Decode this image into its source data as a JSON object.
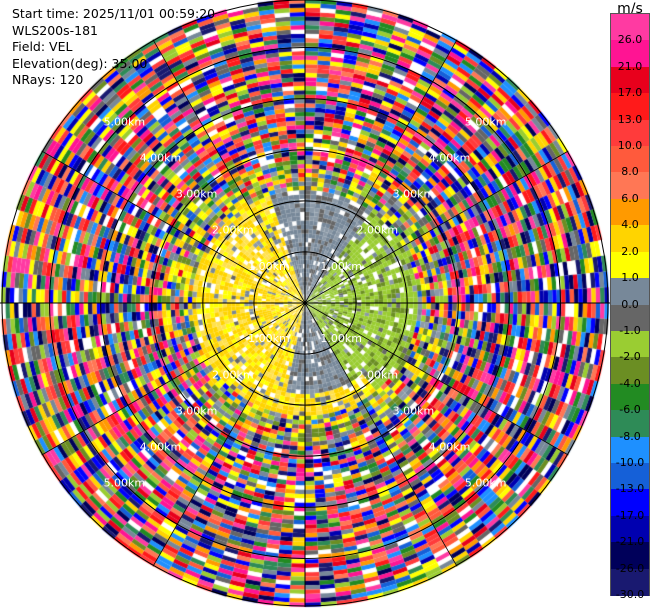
{
  "header": {
    "start_time": "Start time: 2025/11/01 00:59:20",
    "instrument": "WLS200s-181",
    "field": "Field: VEL",
    "elevation": "Elevation(deg): 35.00",
    "nrays": "NRays: 120"
  },
  "colorbar": {
    "unit": "m/s",
    "labels": [
      "26.0",
      "21.0",
      "17.0",
      "13.0",
      "10.0",
      "8.0",
      "6.0",
      "4.0",
      "2.0",
      "1.0",
      "0.0",
      "-1.0",
      "-2.0",
      "-4.0",
      "-6.0",
      "-8.0",
      "-10.0",
      "-13.0",
      "-17.0",
      "-21.0",
      "-26.0",
      "-30.0"
    ],
    "colors": [
      "#ff3aa2",
      "#ff1493",
      "#e8001c",
      "#ff1a1a",
      "#ff3b3b",
      "#ff5a3c",
      "#ff7755",
      "#ff9a00",
      "#ffd400",
      "#ffff00",
      "#778899",
      "#666666",
      "#9acd32",
      "#6b8e23",
      "#228b22",
      "#2e8b57",
      "#1e90ff",
      "#1560d8",
      "#0000ff",
      "#0000b0",
      "#00005a",
      "#191970"
    ]
  },
  "chart_data": {
    "type": "heatmap",
    "projection": "polar-ppi",
    "field": "VEL",
    "unit": "m/s",
    "nrays": 120,
    "range_rings": [
      {
        "label": "1.00km",
        "value_km": 1
      },
      {
        "label": "2.00km",
        "value_km": 2
      },
      {
        "label": "3.00km",
        "value_km": 3
      },
      {
        "label": "4.00km",
        "value_km": 4
      },
      {
        "label": "5.00km",
        "value_km": 5
      }
    ],
    "ring_labels": [
      "1.00km",
      "2.00km",
      "3.00km",
      "4.00km",
      "5.00km"
    ],
    "max_range_km": 5.0,
    "spokes_deg": [
      0,
      30,
      60,
      90,
      120,
      150,
      180,
      210,
      240,
      270,
      300,
      330
    ],
    "data_description": "Near-field (<~2 km) shows coherent radial velocity: positive ~2-4 m/s (yellow) to the west/north-west and south, ~0 m/s (grey) to the north and south-east, negative ~-1 to -2 m/s (green) to the east; beyond ~2.5 km values are noisy across the full -30..26 m/s range."
  }
}
